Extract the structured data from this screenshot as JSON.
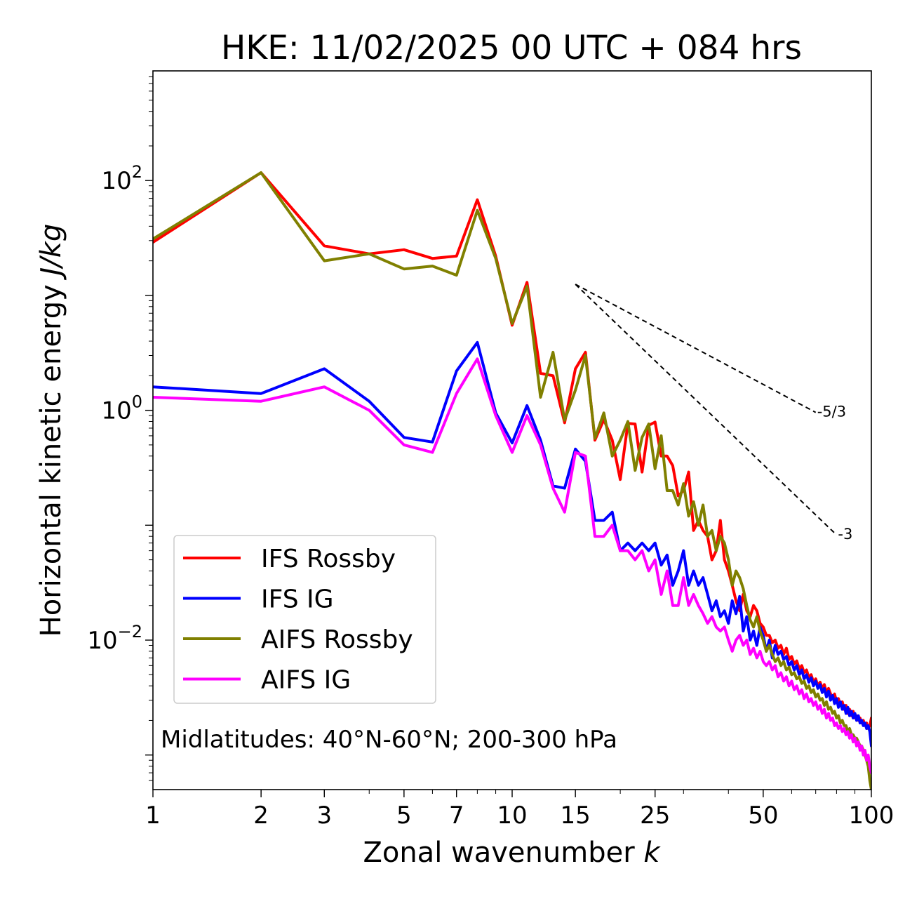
{
  "chart_data": {
    "type": "line",
    "title": "HKE: 11/02/2025 00 UTC + 084 hrs",
    "xlabel": "Zonal wavenumber",
    "xlabel_italic": "k",
    "ylabel": "Horizontal kinetic energy",
    "ylabel_italic": "J/kg",
    "xscale": "log",
    "yscale": "log",
    "xlim": [
      1,
      100
    ],
    "ylim": [
      0.0005,
      900
    ],
    "x_ticks": [
      1,
      2,
      3,
      5,
      7,
      10,
      15,
      25,
      50,
      100
    ],
    "x_tick_labels": [
      "1",
      "2",
      "3",
      "5",
      "7",
      "10",
      "15",
      "25",
      "50",
      "100"
    ],
    "y_ticks": [
      {
        "value": 100,
        "base": "10",
        "exp": "2"
      },
      {
        "value": 1,
        "base": "10",
        "exp": "0"
      },
      {
        "value": 0.01,
        "base": "10",
        "exp": "−2"
      }
    ],
    "grid": false,
    "legend_position": "lower-left",
    "annotation": "Midlatitudes: 40°N-60°N; 200-300 hPa",
    "reference_slopes": [
      {
        "label": "-5/3",
        "slope": -1.6667,
        "x": [
          15,
          70
        ],
        "y0": 12.5
      },
      {
        "label": "-3",
        "slope": -3,
        "x": [
          15,
          80
        ],
        "y0": 12.5
      }
    ],
    "series": [
      {
        "name": "IFS Rossby",
        "color": "#ff0000",
        "x": [
          1,
          2,
          3,
          4,
          5,
          6,
          7,
          8,
          9,
          10,
          11,
          12,
          13,
          14,
          15,
          16,
          17,
          18,
          19,
          20,
          21,
          22,
          23,
          24,
          25,
          26,
          27,
          28,
          29,
          30,
          31,
          32,
          33,
          34,
          35,
          36,
          37,
          38,
          39,
          40,
          41,
          42,
          43,
          44,
          45,
          46,
          47,
          48,
          49,
          50,
          51,
          52,
          53,
          54,
          55,
          56,
          57,
          58,
          59,
          60,
          61,
          62,
          63,
          64,
          65,
          66,
          67,
          68,
          69,
          70,
          71,
          72,
          73,
          74,
          75,
          76,
          77,
          78,
          79,
          80,
          81,
          82,
          83,
          84,
          85,
          86,
          87,
          88,
          89,
          90,
          91,
          92,
          93,
          94,
          95,
          96,
          97,
          98,
          99,
          100
        ],
        "y": [
          29,
          117,
          27,
          23,
          25,
          21,
          22,
          68,
          22,
          5.5,
          13,
          2.1,
          2.0,
          0.78,
          2.3,
          3.2,
          0.55,
          0.83,
          0.55,
          0.25,
          0.77,
          0.76,
          0.29,
          0.74,
          0.79,
          0.4,
          0.4,
          0.33,
          0.18,
          0.2,
          0.29,
          0.09,
          0.11,
          0.09,
          0.08,
          0.05,
          0.06,
          0.11,
          0.05,
          0.04,
          0.03,
          0.022,
          0.018,
          0.025,
          0.018,
          0.016,
          0.02,
          0.018,
          0.014,
          0.013,
          0.011,
          0.011,
          0.0095,
          0.01,
          0.0085,
          0.009,
          0.0075,
          0.0085,
          0.0068,
          0.0072,
          0.0062,
          0.0066,
          0.0056,
          0.006,
          0.0052,
          0.0055,
          0.0047,
          0.005,
          0.0043,
          0.0046,
          0.004,
          0.0043,
          0.0038,
          0.0041,
          0.0035,
          0.0038,
          0.0034,
          0.0031,
          0.0034,
          0.0029,
          0.0031,
          0.0027,
          0.0029,
          0.0025,
          0.0027,
          0.0023,
          0.0025,
          0.0022,
          0.0024,
          0.0021,
          0.0022,
          0.002,
          0.0021,
          0.0019,
          0.002,
          0.0018,
          0.0019,
          0.0017,
          0.0018,
          0.0021
        ]
      },
      {
        "name": "IFS IG",
        "color": "#0000ff",
        "x": [
          1,
          2,
          3,
          4,
          5,
          6,
          7,
          8,
          9,
          10,
          11,
          12,
          13,
          14,
          15,
          16,
          17,
          18,
          19,
          20,
          21,
          22,
          23,
          24,
          25,
          26,
          27,
          28,
          29,
          30,
          31,
          32,
          33,
          34,
          35,
          36,
          37,
          38,
          39,
          40,
          41,
          42,
          43,
          44,
          45,
          46,
          47,
          48,
          49,
          50,
          51,
          52,
          53,
          54,
          55,
          56,
          57,
          58,
          59,
          60,
          61,
          62,
          63,
          64,
          65,
          66,
          67,
          68,
          69,
          70,
          71,
          72,
          73,
          74,
          75,
          76,
          77,
          78,
          79,
          80,
          81,
          82,
          83,
          84,
          85,
          86,
          87,
          88,
          89,
          90,
          91,
          92,
          93,
          94,
          95,
          96,
          97,
          98,
          99,
          100
        ],
        "y": [
          1.6,
          1.4,
          2.3,
          1.2,
          0.58,
          0.53,
          2.2,
          3.9,
          0.95,
          0.52,
          1.1,
          0.55,
          0.22,
          0.21,
          0.46,
          0.36,
          0.11,
          0.11,
          0.13,
          0.06,
          0.07,
          0.06,
          0.07,
          0.06,
          0.07,
          0.045,
          0.055,
          0.03,
          0.04,
          0.06,
          0.03,
          0.04,
          0.03,
          0.035,
          0.025,
          0.018,
          0.022,
          0.016,
          0.018,
          0.014,
          0.022,
          0.017,
          0.024,
          0.012,
          0.016,
          0.01,
          0.012,
          0.009,
          0.013,
          0.011,
          0.008,
          0.01,
          0.007,
          0.009,
          0.0075,
          0.008,
          0.0068,
          0.0072,
          0.006,
          0.0065,
          0.0055,
          0.006,
          0.005,
          0.0055,
          0.0046,
          0.005,
          0.0043,
          0.0047,
          0.004,
          0.0044,
          0.0038,
          0.0041,
          0.0035,
          0.0038,
          0.0032,
          0.0036,
          0.003,
          0.0033,
          0.0028,
          0.0031,
          0.0026,
          0.0029,
          0.0025,
          0.0027,
          0.0023,
          0.0026,
          0.0022,
          0.0024,
          0.0021,
          0.0023,
          0.002,
          0.0022,
          0.0019,
          0.002,
          0.0018,
          0.0019,
          0.0017,
          0.0018,
          0.0016,
          0.0012
        ]
      },
      {
        "name": "AIFS Rossby",
        "color": "#808000",
        "x": [
          1,
          2,
          3,
          4,
          5,
          6,
          7,
          8,
          9,
          10,
          11,
          12,
          13,
          14,
          15,
          16,
          17,
          18,
          19,
          20,
          21,
          22,
          23,
          24,
          25,
          26,
          27,
          28,
          29,
          30,
          31,
          32,
          33,
          34,
          35,
          36,
          37,
          38,
          39,
          40,
          41,
          42,
          43,
          44,
          45,
          46,
          47,
          48,
          49,
          50,
          51,
          52,
          53,
          54,
          55,
          56,
          57,
          58,
          59,
          60,
          61,
          62,
          63,
          64,
          65,
          66,
          67,
          68,
          69,
          70,
          71,
          72,
          73,
          74,
          75,
          76,
          77,
          78,
          79,
          80,
          81,
          82,
          83,
          84,
          85,
          86,
          87,
          88,
          89,
          90,
          91,
          92,
          93,
          94,
          95,
          96,
          97,
          98,
          99,
          100
        ],
        "y": [
          31,
          117,
          20,
          23,
          17,
          18,
          15,
          55,
          21,
          5.7,
          12,
          1.3,
          3.2,
          0.82,
          1.5,
          3.0,
          0.57,
          0.95,
          0.4,
          0.55,
          0.8,
          0.3,
          0.58,
          0.76,
          0.31,
          0.6,
          0.2,
          0.2,
          0.15,
          0.23,
          0.12,
          0.16,
          0.1,
          0.15,
          0.08,
          0.09,
          0.06,
          0.08,
          0.07,
          0.05,
          0.03,
          0.04,
          0.035,
          0.028,
          0.02,
          0.015,
          0.013,
          0.016,
          0.012,
          0.01,
          0.008,
          0.009,
          0.0075,
          0.0065,
          0.007,
          0.006,
          0.0065,
          0.0055,
          0.0058,
          0.005,
          0.0052,
          0.0046,
          0.0048,
          0.0042,
          0.0044,
          0.0038,
          0.004,
          0.0035,
          0.0037,
          0.0032,
          0.0034,
          0.003,
          0.0031,
          0.0027,
          0.0029,
          0.0025,
          0.0026,
          0.0023,
          0.0024,
          0.0021,
          0.0022,
          0.0019,
          0.002,
          0.0018,
          0.0018,
          0.0016,
          0.0017,
          0.0015,
          0.0015,
          0.0014,
          0.0014,
          0.0013,
          0.0012,
          0.0012,
          0.0011,
          0.001,
          0.0009,
          0.0008,
          0.0006,
          0.0005
        ]
      },
      {
        "name": "AIFS IG",
        "color": "#ff00ff",
        "x": [
          1,
          2,
          3,
          4,
          5,
          6,
          7,
          8,
          9,
          10,
          11,
          12,
          13,
          14,
          15,
          16,
          17,
          18,
          19,
          20,
          21,
          22,
          23,
          24,
          25,
          26,
          27,
          28,
          29,
          30,
          31,
          32,
          33,
          34,
          35,
          36,
          37,
          38,
          39,
          40,
          41,
          42,
          43,
          44,
          45,
          46,
          47,
          48,
          49,
          50,
          51,
          52,
          53,
          54,
          55,
          56,
          57,
          58,
          59,
          60,
          61,
          62,
          63,
          64,
          65,
          66,
          67,
          68,
          69,
          70,
          71,
          72,
          73,
          74,
          75,
          76,
          77,
          78,
          79,
          80,
          81,
          82,
          83,
          84,
          85,
          86,
          87,
          88,
          89,
          90,
          91,
          92,
          93,
          94,
          95,
          96,
          97,
          98,
          99,
          100
        ],
        "y": [
          1.3,
          1.2,
          1.6,
          1.0,
          0.5,
          0.43,
          1.4,
          2.8,
          0.9,
          0.43,
          0.9,
          0.5,
          0.21,
          0.13,
          0.43,
          0.4,
          0.08,
          0.08,
          0.1,
          0.06,
          0.06,
          0.05,
          0.06,
          0.04,
          0.05,
          0.025,
          0.04,
          0.02,
          0.02,
          0.035,
          0.02,
          0.025,
          0.02,
          0.017,
          0.014,
          0.016,
          0.013,
          0.012,
          0.013,
          0.01,
          0.008,
          0.01,
          0.011,
          0.009,
          0.01,
          0.0075,
          0.0085,
          0.007,
          0.008,
          0.0065,
          0.006,
          0.0065,
          0.0055,
          0.006,
          0.0048,
          0.0052,
          0.0044,
          0.0048,
          0.004,
          0.0044,
          0.0037,
          0.004,
          0.0034,
          0.0037,
          0.0031,
          0.0034,
          0.0029,
          0.0031,
          0.0027,
          0.0029,
          0.0025,
          0.0027,
          0.0023,
          0.0025,
          0.0021,
          0.0023,
          0.002,
          0.0021,
          0.0018,
          0.0019,
          0.0017,
          0.0018,
          0.0016,
          0.0017,
          0.0015,
          0.0016,
          0.0014,
          0.0015,
          0.0013,
          0.0014,
          0.0012,
          0.0013,
          0.0011,
          0.0012,
          0.001,
          0.0011,
          0.0009,
          0.001,
          0.0008,
          0.0007
        ]
      }
    ]
  }
}
